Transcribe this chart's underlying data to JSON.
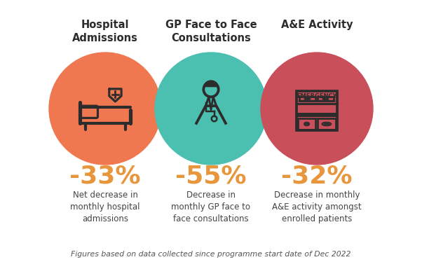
{
  "background_color": "#ffffff",
  "title_color": "#2C2C2C",
  "percentage_color": "#E8963C",
  "desc_color": "#444444",
  "footnote_color": "#555555",
  "circle_colors": [
    "#F07850",
    "#4BBFB0",
    "#C94F5A"
  ],
  "titles": [
    "Hospital\nAdmissions",
    "GP Face to Face\nConsultations",
    "A&E Activity"
  ],
  "percentages": [
    "-33%",
    "-55%",
    "-32%"
  ],
  "descriptions": [
    "Net decrease in\nmonthly hospital\nadmissions",
    "Decrease in\nmonthly GP face to\nface consultations",
    "Decrease in monthly\nA&E activity amongst\nenrolled patients"
  ],
  "footnote": "Figures based on data collected since programme start date of Dec 2022",
  "title_fontsize": 10.5,
  "percentage_fontsize": 26,
  "desc_fontsize": 8.5,
  "footnote_fontsize": 7.8,
  "icon_color": "#2C2C2C",
  "icon_linewidth": 1.5
}
